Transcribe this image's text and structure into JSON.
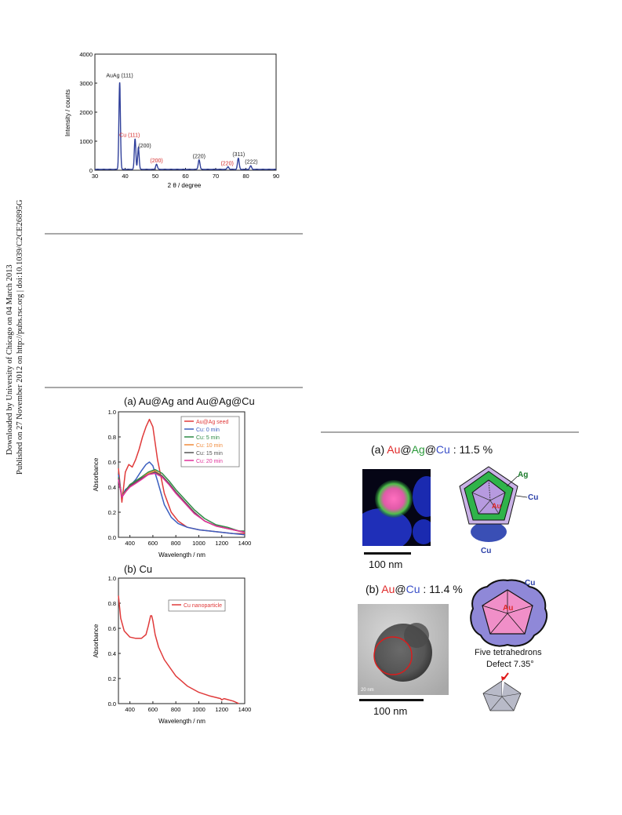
{
  "sidebar": {
    "line1": "Downloaded by University of Chicago on 04 March 2013",
    "line2": "Published on 27 November 2012 on http://pubs.rsc.org | doi:10.1039/C2CE26895G"
  },
  "chart_data": [
    {
      "type": "line",
      "title": "",
      "xlabel": "2 θ / degree",
      "ylabel": "Intensity / counts",
      "xlim": [
        30,
        90
      ],
      "ylim": [
        0,
        4000
      ],
      "xticks": [
        30,
        40,
        50,
        60,
        70,
        80,
        90
      ],
      "yticks": [
        0,
        1000,
        2000,
        3000,
        4000
      ],
      "color": "#2f3f9a",
      "peaks": [
        {
          "x": 38.2,
          "y": 3000,
          "w": 0.35
        },
        {
          "x": 43.3,
          "y": 1050,
          "w": 0.35
        },
        {
          "x": 44.4,
          "y": 750,
          "w": 0.35
        },
        {
          "x": 50.4,
          "y": 180,
          "w": 0.4
        },
        {
          "x": 64.5,
          "y": 330,
          "w": 0.4
        },
        {
          "x": 74.1,
          "y": 90,
          "w": 0.4
        },
        {
          "x": 77.5,
          "y": 380,
          "w": 0.4
        },
        {
          "x": 81.6,
          "y": 120,
          "w": 0.4
        }
      ],
      "annotations": [
        {
          "text": "AuAg (111)",
          "x": 38.2,
          "y": 3200,
          "color": "#222"
        },
        {
          "text": "Cu (111)",
          "x": 41.5,
          "y": 1150,
          "color": "#d42a2a"
        },
        {
          "text": "(200)",
          "x": 46.5,
          "y": 780,
          "color": "#222"
        },
        {
          "text": "(200)",
          "x": 50.4,
          "y": 270,
          "color": "#d42a2a"
        },
        {
          "text": "(220)",
          "x": 64.5,
          "y": 420,
          "color": "#222"
        },
        {
          "text": "(220)",
          "x": 73.8,
          "y": 180,
          "color": "#d42a2a"
        },
        {
          "text": "(311)",
          "x": 77.6,
          "y": 480,
          "color": "#222"
        },
        {
          "text": "(222)",
          "x": 81.8,
          "y": 230,
          "color": "#222"
        }
      ]
    },
    {
      "type": "line",
      "title": "(a) Au@Ag and Au@Ag@Cu",
      "xlabel": "Wavelength / nm",
      "ylabel": "Absorbance",
      "xlim": [
        300,
        1400
      ],
      "ylim": [
        0,
        1.0
      ],
      "xticks": [
        400,
        600,
        800,
        1000,
        1200,
        1400
      ],
      "yticks": [
        0.0,
        0.2,
        0.4,
        0.6,
        0.8,
        1.0
      ],
      "series": [
        {
          "name": "Au@Ag seed",
          "color": "#e03a3a",
          "x": [
            300,
            330,
            360,
            390,
            420,
            450,
            480,
            510,
            540,
            570,
            600,
            640,
            700,
            760,
            820,
            900,
            1000,
            1100,
            1200,
            1300,
            1400
          ],
          "values": [
            0.55,
            0.28,
            0.52,
            0.58,
            0.56,
            0.62,
            0.7,
            0.8,
            0.88,
            0.94,
            0.88,
            0.62,
            0.35,
            0.2,
            0.13,
            0.08,
            0.06,
            0.05,
            0.04,
            0.03,
            0.03
          ]
        },
        {
          "name": "Cu: 0 min",
          "color": "#3b5fc0",
          "x": [
            300,
            330,
            360,
            400,
            450,
            500,
            540,
            570,
            600,
            640,
            700,
            760,
            820,
            900,
            1000,
            1100,
            1200,
            1300,
            1400
          ],
          "values": [
            0.5,
            0.32,
            0.38,
            0.41,
            0.46,
            0.53,
            0.58,
            0.6,
            0.57,
            0.45,
            0.26,
            0.16,
            0.11,
            0.08,
            0.06,
            0.05,
            0.04,
            0.03,
            0.02
          ]
        },
        {
          "name": "Cu: 5 min",
          "color": "#2e8b46",
          "x": [
            300,
            330,
            360,
            400,
            450,
            500,
            560,
            620,
            680,
            740,
            800,
            880,
            960,
            1050,
            1150,
            1250,
            1350,
            1400
          ],
          "values": [
            0.48,
            0.33,
            0.37,
            0.42,
            0.45,
            0.48,
            0.52,
            0.54,
            0.51,
            0.45,
            0.38,
            0.3,
            0.22,
            0.15,
            0.1,
            0.08,
            0.05,
            0.05
          ]
        },
        {
          "name": "Cu: 10 min",
          "color": "#f08a3a",
          "x": [
            300,
            330,
            360,
            400,
            450,
            500,
            560,
            620,
            680,
            740,
            800,
            880,
            960,
            1050,
            1150,
            1250,
            1350,
            1400
          ],
          "values": [
            0.47,
            0.33,
            0.36,
            0.41,
            0.44,
            0.47,
            0.51,
            0.53,
            0.49,
            0.43,
            0.36,
            0.28,
            0.2,
            0.13,
            0.09,
            0.07,
            0.05,
            0.04
          ]
        },
        {
          "name": "Cu: 15 min",
          "color": "#555555",
          "x": [
            300,
            330,
            360,
            400,
            450,
            500,
            560,
            620,
            680,
            740,
            800,
            880,
            960,
            1050,
            1150,
            1250,
            1350,
            1400
          ],
          "values": [
            0.47,
            0.32,
            0.36,
            0.41,
            0.44,
            0.47,
            0.5,
            0.52,
            0.49,
            0.43,
            0.36,
            0.28,
            0.2,
            0.13,
            0.09,
            0.07,
            0.05,
            0.04
          ]
        },
        {
          "name": "Cu: 20 min",
          "color": "#e0309a",
          "x": [
            300,
            330,
            360,
            400,
            450,
            500,
            560,
            620,
            680,
            740,
            800,
            880,
            960,
            1050,
            1150,
            1250,
            1350,
            1400
          ],
          "values": [
            0.46,
            0.32,
            0.36,
            0.4,
            0.43,
            0.46,
            0.5,
            0.51,
            0.48,
            0.42,
            0.35,
            0.27,
            0.19,
            0.13,
            0.09,
            0.07,
            0.05,
            0.04
          ]
        }
      ]
    },
    {
      "type": "line",
      "title": "(b) Cu",
      "xlabel": "Wavelength / nm",
      "ylabel": "Absorbance",
      "xlim": [
        300,
        1400
      ],
      "ylim": [
        0,
        1.0
      ],
      "xticks": [
        400,
        600,
        800,
        1000,
        1200,
        1400
      ],
      "yticks": [
        0.0,
        0.2,
        0.4,
        0.6,
        0.8,
        1.0
      ],
      "series": [
        {
          "name": "Cu nanoparticle",
          "color": "#e03a3a",
          "x": [
            300,
            320,
            350,
            400,
            450,
            500,
            540,
            560,
            580,
            590,
            600,
            620,
            650,
            700,
            800,
            900,
            1000,
            1100,
            1190,
            1200,
            1220,
            1300,
            1350
          ],
          "values": [
            0.86,
            0.68,
            0.58,
            0.53,
            0.52,
            0.52,
            0.55,
            0.62,
            0.7,
            0.7,
            0.66,
            0.55,
            0.45,
            0.35,
            0.22,
            0.14,
            0.09,
            0.06,
            0.04,
            0.03,
            0.04,
            0.02,
            0.0
          ]
        }
      ]
    }
  ],
  "figure_right": {
    "panel_a": {
      "label_prefix": "(a) ",
      "label_au": "Au",
      "label_at1": "@",
      "label_ag": "Ag",
      "label_at2": "@",
      "label_cu": "Cu",
      "label_suffix": " : 11.5 %",
      "scale": "100 nm",
      "diagram_labels": {
        "ag": "Ag",
        "cu_right": "Cu",
        "au": "Au",
        "cu_bottom": "Cu"
      }
    },
    "panel_b": {
      "label_prefix": "(b) ",
      "label_au": "Au",
      "label_at": "@",
      "label_cu": "Cu",
      "label_suffix": " : 11.4 %",
      "scale": "100 nm",
      "image_scale": "20 nm",
      "diagram_labels": {
        "cu": "Cu",
        "au": "Au"
      },
      "caption_line1": "Five tetrahedrons",
      "caption_line2": "Defect 7.35°"
    }
  }
}
